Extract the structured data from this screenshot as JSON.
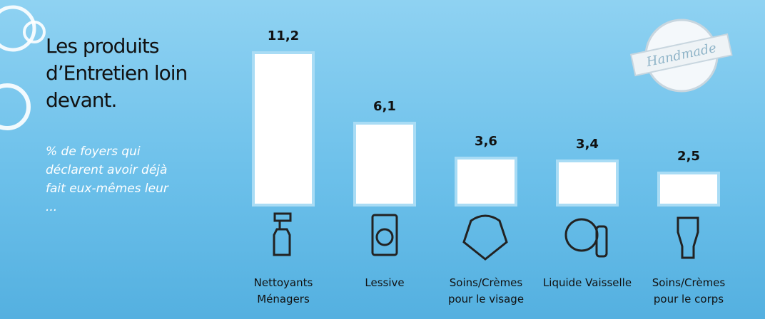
{
  "chart_data": {
    "type": "bar",
    "title": "Les produits d’Entretien loin devant.",
    "subtitle": "% de foyers qui déclarent avoir déjà fait eux-mêmes leur ...",
    "stamp": "Handmade",
    "categories": [
      "Nettoyants Ménagers",
      "Lessive",
      "Soins/Crèmes pour le visage",
      "Liquide Vaisselle",
      "Soins/Crèmes pour le corps"
    ],
    "values": [
      11.2,
      6.1,
      3.6,
      3.4,
      2.5
    ],
    "value_labels": [
      "11,2",
      "6,1",
      "3,6",
      "3,4",
      "2,5"
    ],
    "color": "#ffffff"
  }
}
